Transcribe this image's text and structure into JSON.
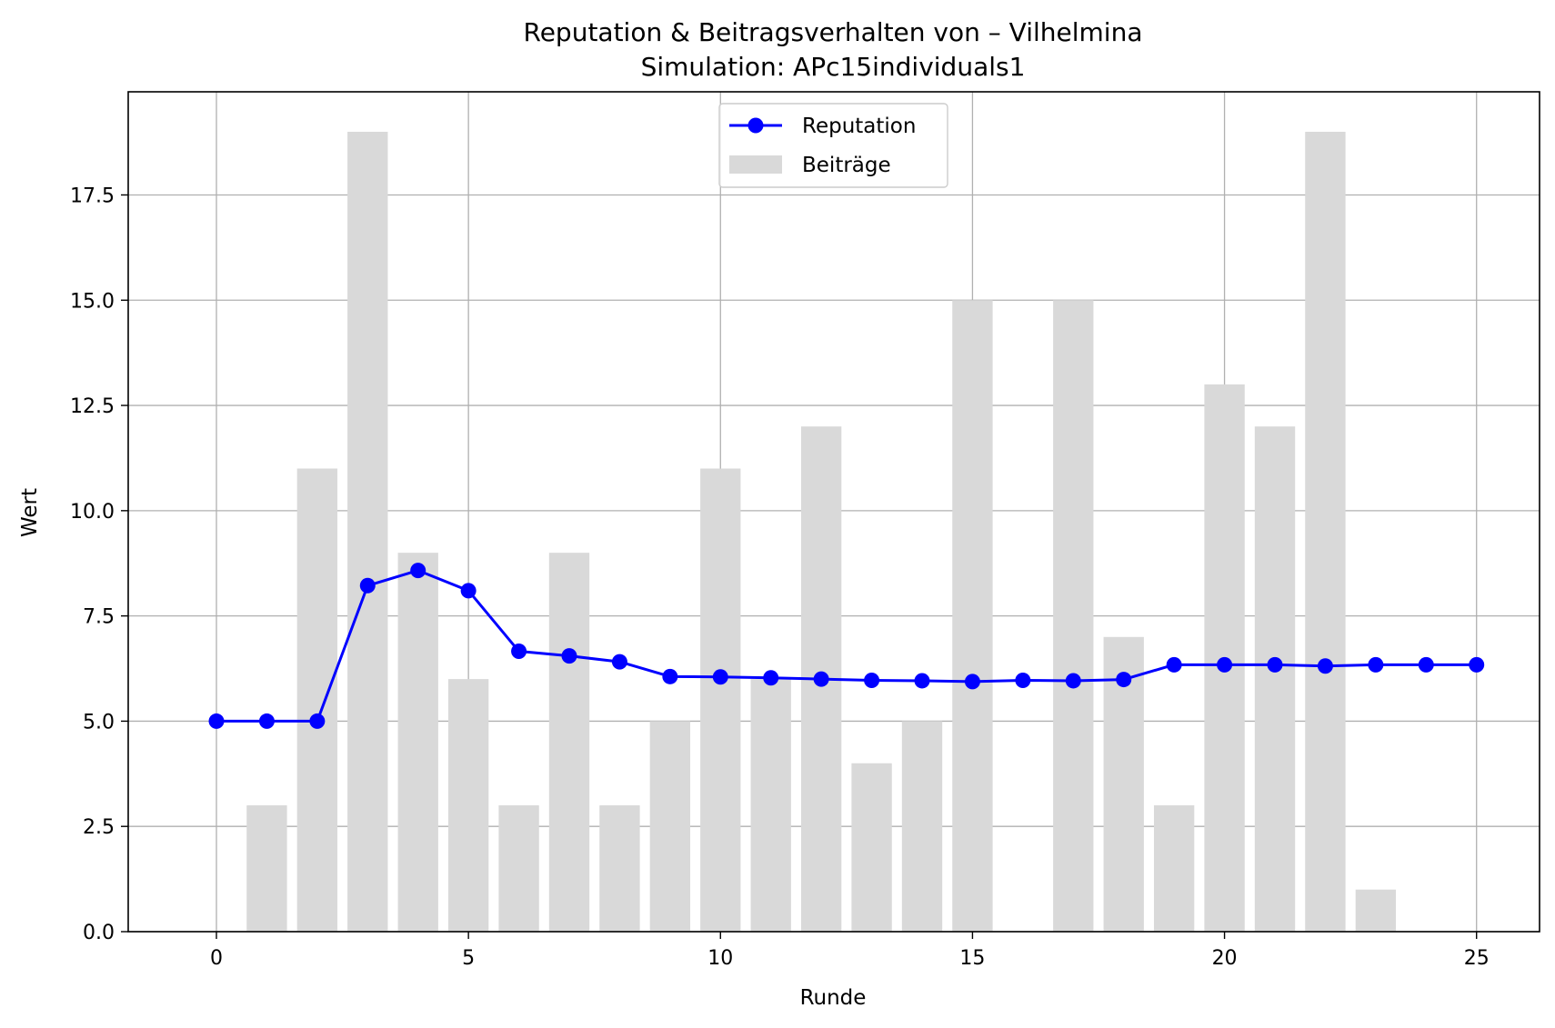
{
  "chart_data": {
    "type": "bar+line",
    "title": "Reputation & Beitragsverhalten von – Vilhelmina",
    "subtitle": "Simulation: APc15individuals1",
    "xlabel": "Runde",
    "ylabel": "Wert",
    "xlim": [
      -1.75,
      26.25
    ],
    "ylim": [
      0,
      19.95
    ],
    "xticks": [
      0,
      5,
      10,
      15,
      20,
      25
    ],
    "xtick_labels": [
      "0",
      "5",
      "10",
      "15",
      "20",
      "25"
    ],
    "yticks": [
      0,
      2.5,
      5,
      7.5,
      10,
      12.5,
      15,
      17.5
    ],
    "ytick_labels": [
      "0.0",
      "2.5",
      "5.0",
      "7.5",
      "10.0",
      "12.5",
      "15.0",
      "17.5"
    ],
    "grid": true,
    "legend_position": "upper center",
    "series": [
      {
        "name": "Reputation",
        "kind": "line",
        "color": "#0000ff",
        "x": [
          0,
          1,
          2,
          3,
          4,
          5,
          6,
          7,
          8,
          9,
          10,
          11,
          12,
          13,
          14,
          15,
          16,
          17,
          18,
          19,
          20,
          21,
          22,
          23,
          24,
          25
        ],
        "values": [
          5.0,
          5.0,
          5.0,
          8.22,
          8.58,
          8.1,
          6.66,
          6.55,
          6.41,
          6.06,
          6.05,
          6.03,
          6.0,
          5.97,
          5.96,
          5.94,
          5.97,
          5.96,
          5.99,
          6.34,
          6.34,
          6.34,
          6.31,
          6.34,
          6.34,
          6.34
        ]
      },
      {
        "name": "Beiträge",
        "kind": "bar",
        "color": "#d9d9d9",
        "x": [
          1,
          2,
          3,
          4,
          5,
          6,
          7,
          8,
          9,
          10,
          11,
          12,
          13,
          14,
          15,
          16,
          17,
          18,
          19,
          20,
          21,
          22,
          23,
          24,
          25
        ],
        "values": [
          3,
          11,
          19,
          9,
          6,
          3,
          9,
          3,
          5,
          11,
          6,
          12,
          4,
          5,
          15,
          0,
          15,
          7,
          3,
          13,
          12,
          19,
          1,
          0,
          0
        ]
      }
    ]
  }
}
